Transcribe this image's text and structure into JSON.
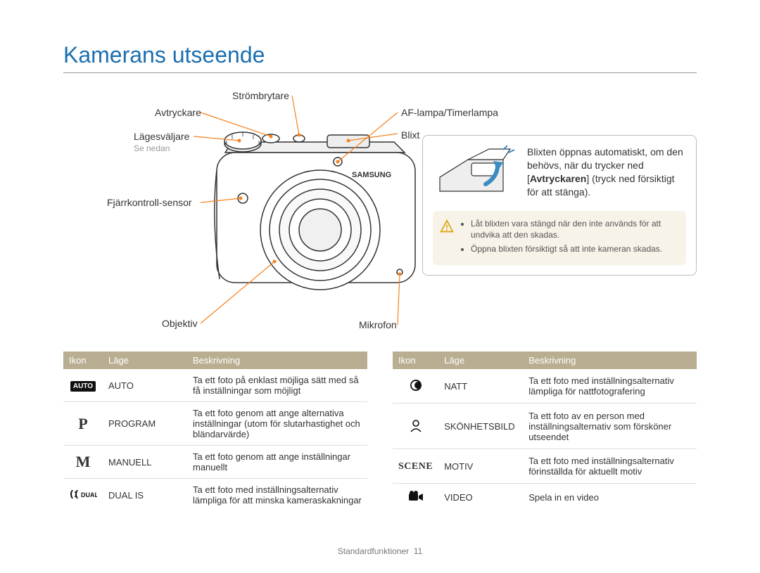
{
  "page_title": "Kamerans utseende",
  "callouts": {
    "power": "Strömbrytare",
    "shutter": "Avtryckare",
    "mode_dial": "Lägesväljare",
    "mode_dial_sub": "Se nedan",
    "remote": "Fjärrkontroll-sensor",
    "lens": "Objektiv",
    "mic": "Mikrofon",
    "af_lamp": "AF-lampa/Timerlampa",
    "flash": "Blixt"
  },
  "flash_box": {
    "text_pre": "Blixten öppnas automatiskt, om den behövs, när du trycker ned [",
    "bold": "Avtryckaren",
    "text_post": "] (tryck ned försiktigt för att stänga).",
    "caution": [
      "Låt blixten vara stängd när den inte används för att undvika att den skadas.",
      "Öppna blixten försiktigt så att inte kameran skadas."
    ]
  },
  "table_headers": {
    "icon": "Ikon",
    "mode": "Läge",
    "desc": "Beskrivning"
  },
  "left_table": [
    {
      "icon_text": "AUTO",
      "icon_style": "box",
      "mode": "AUTO",
      "desc": "Ta ett foto på enklast möjliga sätt med så få inställningar som möjligt"
    },
    {
      "icon_text": "P",
      "icon_style": "letter",
      "mode": "PROGRAM",
      "desc": "Ta ett foto genom att ange alternativa inställningar (utom för slutarhastighet och bländarvärde)"
    },
    {
      "icon_text": "M",
      "icon_style": "letter",
      "mode": "MANUELL",
      "desc": "Ta ett foto genom att ange inställningar manuellt"
    },
    {
      "icon_text": "dual",
      "icon_style": "dual",
      "mode": "DUAL IS",
      "desc": "Ta ett foto med inställningsalternativ lämpliga för att minska kameraskakningar"
    }
  ],
  "right_table": [
    {
      "icon_text": "night",
      "icon_style": "svgnight",
      "mode": "NATT",
      "desc": "Ta ett foto med inställningsalternativ lämpliga för nattfotografering"
    },
    {
      "icon_text": "beauty",
      "icon_style": "svgbeauty",
      "mode": "SKÖNHETSBILD",
      "desc": "Ta ett foto av en person med inställningsalternativ som försköner utseendet"
    },
    {
      "icon_text": "SCENE",
      "icon_style": "scene",
      "mode": "MOTIV",
      "desc": "Ta ett foto med inställningsalternativ förinställda för aktuellt motiv"
    },
    {
      "icon_text": "video",
      "icon_style": "svgvideo",
      "mode": "VIDEO",
      "desc": "Spela in en video"
    }
  ],
  "footer": {
    "label": "Standardfunktioner",
    "page_num": "11"
  },
  "colors": {
    "title": "#1b6fb0",
    "leader": "#f58220",
    "table_header_bg": "#b9ae91",
    "caution_bg": "#f7f3e9",
    "arrow": "#3b8cc4"
  }
}
